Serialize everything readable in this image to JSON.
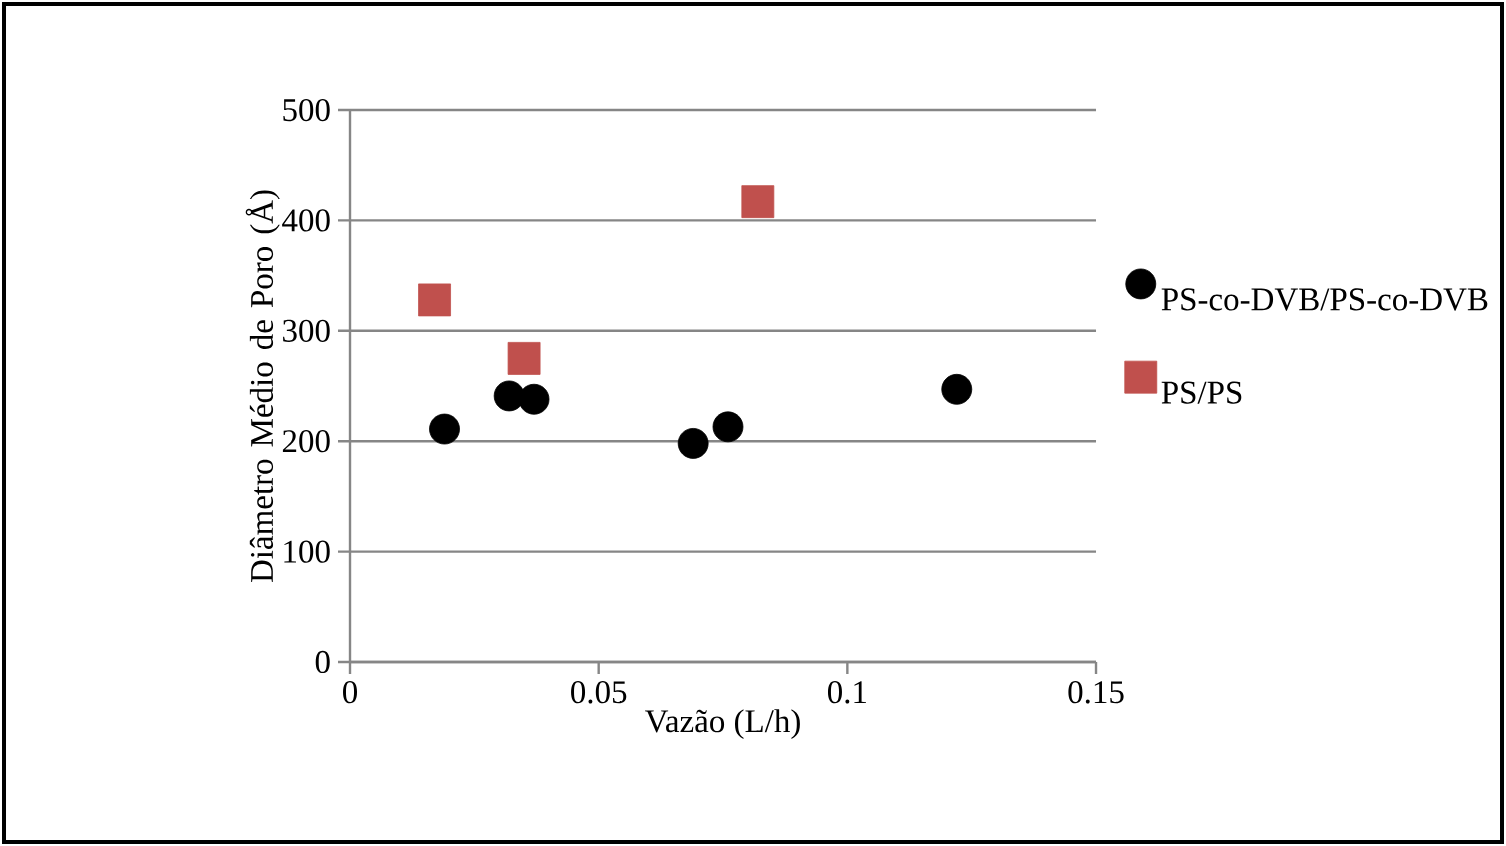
{
  "chart_data": {
    "type": "scatter",
    "xlabel": "Vazão (L/h)",
    "ylabel": "Diâmetro Médio de Poro (Å)",
    "xlim": [
      0,
      0.15
    ],
    "xticks": [
      0,
      0.05,
      0.1,
      0.15
    ],
    "ylim": [
      0,
      500
    ],
    "yticks": [
      0,
      100,
      200,
      300,
      400,
      500
    ],
    "grid": "y",
    "legend": "right",
    "series": [
      {
        "name": "PS-co-DVB/PS-co-DVB",
        "color": "#000000",
        "marker": "circle",
        "x": [
          0.019,
          0.032,
          0.037,
          0.069,
          0.076,
          0.122
        ],
        "values": [
          211,
          241,
          238,
          198,
          213,
          247
        ]
      },
      {
        "name": "PS/PS",
        "color": "#c0504d",
        "marker": "square",
        "x": [
          0.017,
          0.035,
          0.082
        ],
        "values": [
          328,
          275,
          417
        ]
      }
    ]
  }
}
